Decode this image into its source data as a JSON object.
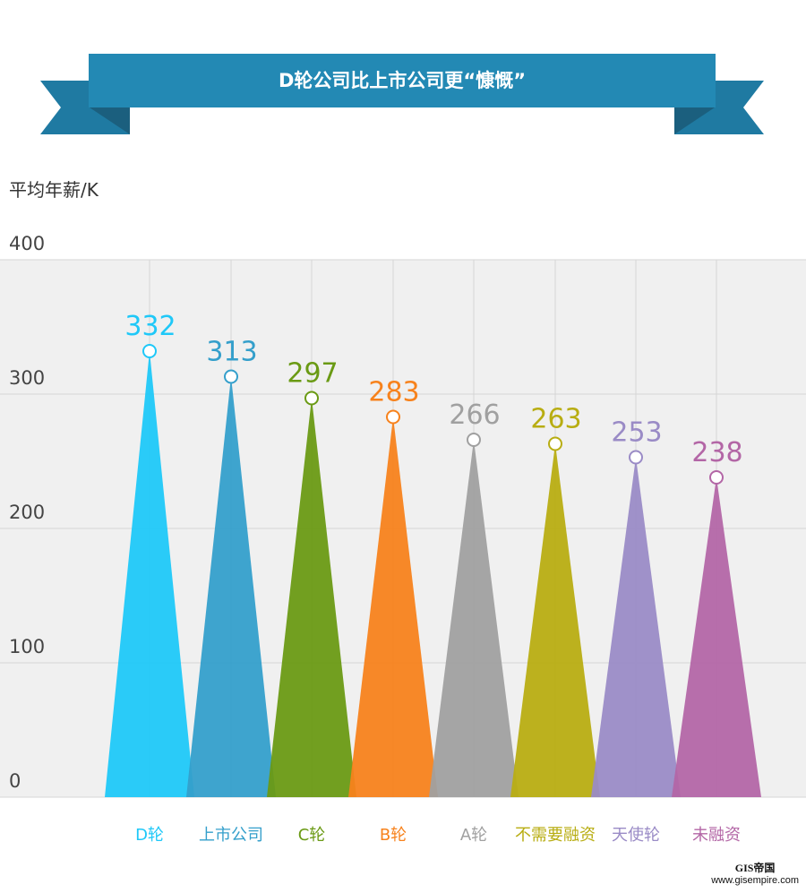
{
  "chart_data": {
    "type": "bar",
    "title": "D轮公司比上市公司更“慷慨”",
    "ylabel": "平均年薪/K",
    "xlabel": "",
    "ylim": [
      0,
      400
    ],
    "yticks": [
      "0",
      "100",
      "200",
      "300",
      "400"
    ],
    "grid": true,
    "categories": [
      "D轮",
      "上市公司",
      "C轮",
      "B轮",
      "A轮",
      "不需要融资",
      "天使轮",
      "未融资"
    ],
    "values": [
      332,
      313,
      297,
      283,
      266,
      263,
      253,
      238
    ],
    "data_labels": [
      "332",
      "313",
      "297",
      "283",
      "266",
      "263",
      "253",
      "238"
    ],
    "colors": [
      "#1fc8f8",
      "#349fcb",
      "#6a9a14",
      "#f7821c",
      "#a0a0a0",
      "#b8ad12",
      "#9a8bc6",
      "#b366a6"
    ]
  },
  "banner_color": "#2389b4",
  "watermark": {
    "title": "GIS帝国",
    "url": "www.gisempire.com"
  }
}
